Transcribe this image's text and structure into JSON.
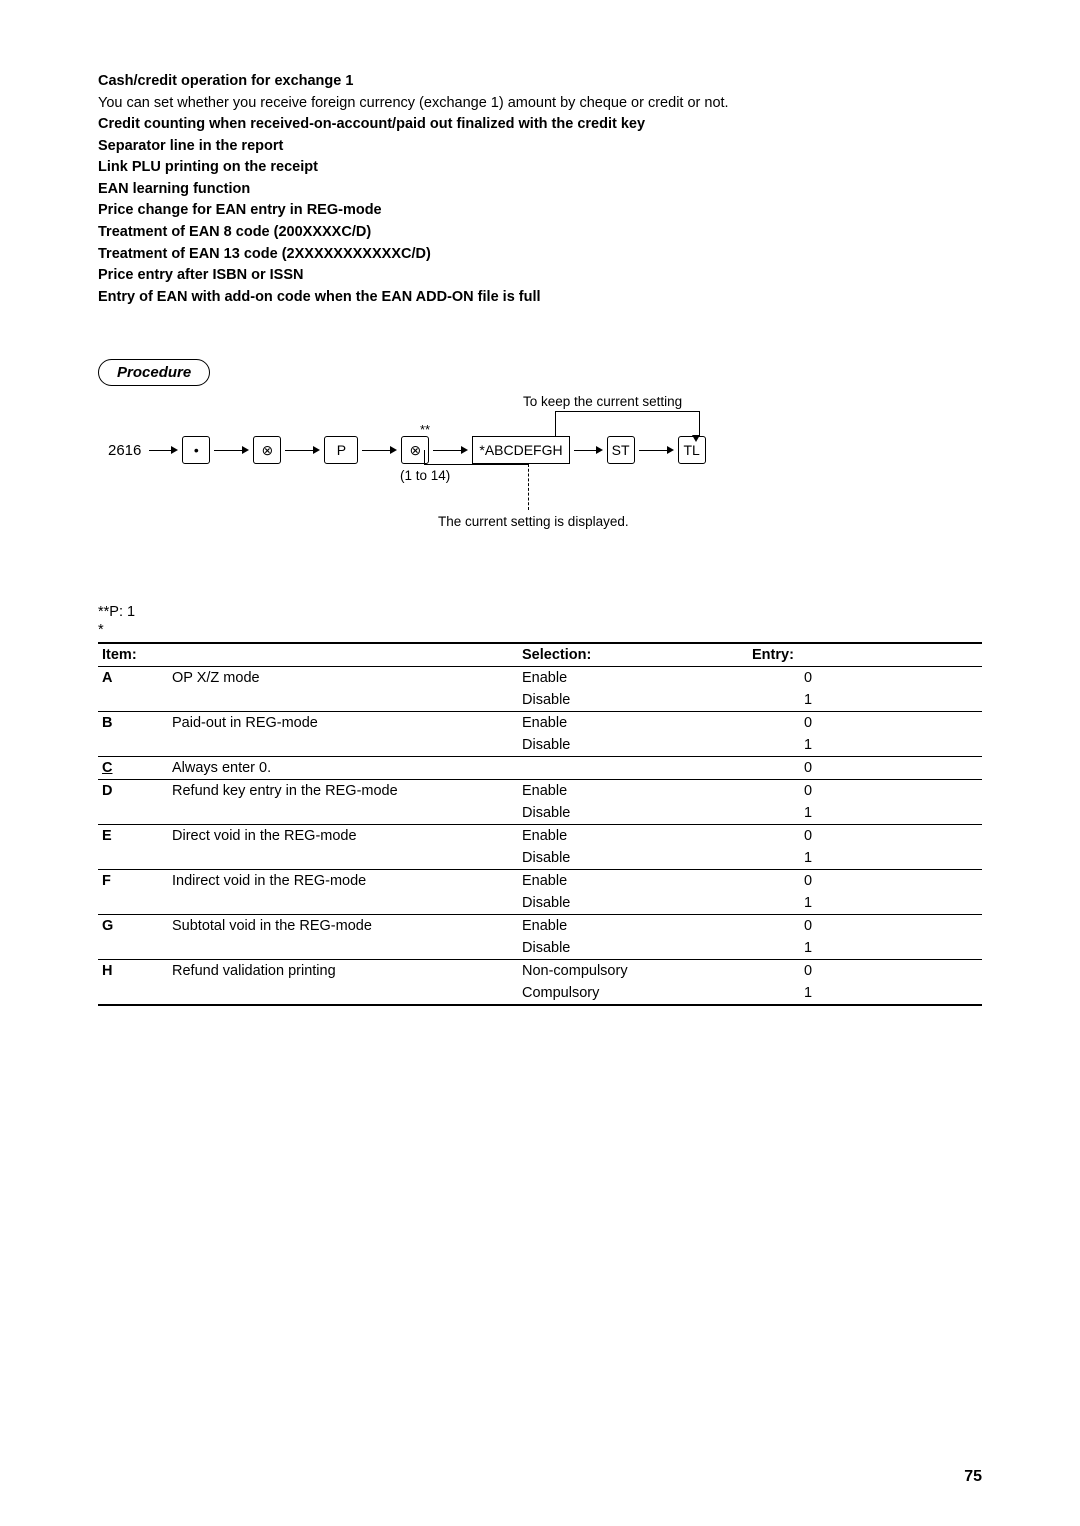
{
  "header_block": {
    "lines": [
      {
        "text": "Cash/credit operation for exchange 1",
        "bold": true
      },
      {
        "text": "You can set whether you receive foreign currency (exchange 1) amount by cheque or credit or not.",
        "bold": false
      },
      {
        "text": "Credit counting when received-on-account/paid out finalized with the credit key",
        "bold": true
      },
      {
        "text": "Separator line in the report",
        "bold": true
      },
      {
        "text": "Link PLU printing on the receipt",
        "bold": true
      },
      {
        "text": "EAN learning function",
        "bold": true
      },
      {
        "text": "Price change for EAN entry in REG-mode",
        "bold": true
      },
      {
        "text": "Treatment of EAN 8 code (200XXXXC/D)",
        "bold": true
      },
      {
        "text": "Treatment of EAN 13 code (2XXXXXXXXXXXC/D)",
        "bold": true
      },
      {
        "text": "Price entry after ISBN or ISSN",
        "bold": true
      },
      {
        "text": "Entry of EAN with add-on code when the EAN ADD-ON file is full",
        "bold": true
      }
    ]
  },
  "procedure_label": "Procedure",
  "diagram": {
    "start_code": "2616",
    "dot": "•",
    "key_x": "⊗",
    "key_p": "P",
    "abcdefgh": "*ABCDEFGH",
    "st": "ST",
    "tl": "TL",
    "ast": "**",
    "range": "(1 to 14)",
    "keep_label": "To keep the current setting",
    "bottom_label": "The current setting is displayed."
  },
  "pp1": "**P: 1",
  "star": "*",
  "table": {
    "headers": {
      "item": "Item:",
      "selection": "Selection:",
      "entry": "Entry:"
    },
    "rows": [
      {
        "letter": "A",
        "underline": false,
        "desc": "OP X/Z mode",
        "sel": "Enable",
        "ent": "0",
        "sep": false
      },
      {
        "letter": "",
        "underline": false,
        "desc": "",
        "sel": "Disable",
        "ent": "1",
        "sep": true
      },
      {
        "letter": "B",
        "underline": false,
        "desc": "Paid-out in REG-mode",
        "sel": "Enable",
        "ent": "0",
        "sep": false
      },
      {
        "letter": "",
        "underline": false,
        "desc": "",
        "sel": "Disable",
        "ent": "1",
        "sep": true
      },
      {
        "letter": "C",
        "underline": true,
        "desc": "Always enter 0.",
        "sel": "",
        "ent": "0",
        "sep": true
      },
      {
        "letter": "D",
        "underline": false,
        "desc": "Refund key entry in the REG-mode",
        "sel": "Enable",
        "ent": "0",
        "sep": false
      },
      {
        "letter": "",
        "underline": false,
        "desc": "",
        "sel": "Disable",
        "ent": "1",
        "sep": true
      },
      {
        "letter": "E",
        "underline": false,
        "desc": "Direct void in the REG-mode",
        "sel": "Enable",
        "ent": "0",
        "sep": false
      },
      {
        "letter": "",
        "underline": false,
        "desc": "",
        "sel": "Disable",
        "ent": "1",
        "sep": true
      },
      {
        "letter": "F",
        "underline": false,
        "desc": "Indirect void in the REG-mode",
        "sel": "Enable",
        "ent": "0",
        "sep": false
      },
      {
        "letter": "",
        "underline": false,
        "desc": "",
        "sel": "Disable",
        "ent": "1",
        "sep": true
      },
      {
        "letter": "G",
        "underline": false,
        "desc": "Subtotal void in the REG-mode",
        "sel": "Enable",
        "ent": "0",
        "sep": false
      },
      {
        "letter": "",
        "underline": false,
        "desc": "",
        "sel": "Disable",
        "ent": "1",
        "sep": true
      },
      {
        "letter": "H",
        "underline": false,
        "desc": "Refund validation printing",
        "sel": "Non-compulsory",
        "ent": "0",
        "sep": false
      },
      {
        "letter": "",
        "underline": false,
        "desc": "",
        "sel": "Compulsory",
        "ent": "1",
        "sep": "last"
      }
    ]
  },
  "page_number": "75"
}
